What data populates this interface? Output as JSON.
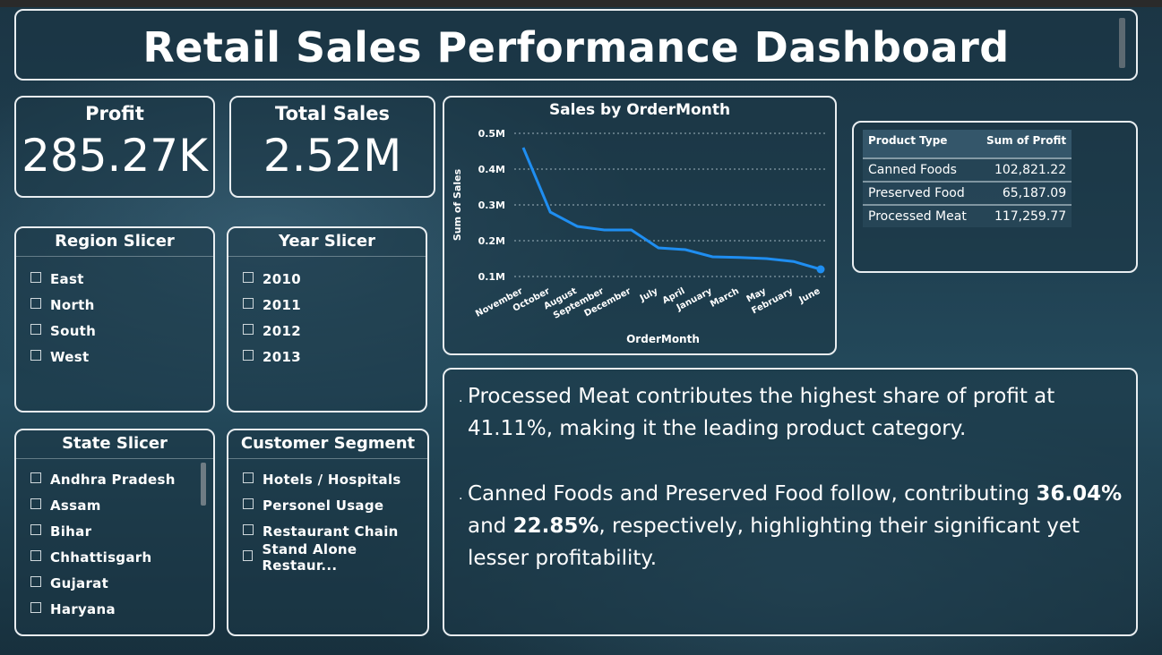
{
  "title": "Retail Sales Performance Dashboard",
  "kpis": {
    "profit": {
      "label": "Profit",
      "value": "285.27K"
    },
    "total_sales": {
      "label": "Total Sales",
      "value": "2.52M"
    }
  },
  "region_slicer": {
    "title": "Region Slicer",
    "items": [
      "East",
      "North",
      "South",
      "West"
    ]
  },
  "year_slicer": {
    "title": "Year Slicer",
    "items": [
      "2010",
      "2011",
      "2012",
      "2013"
    ]
  },
  "state_slicer": {
    "title": "State Slicer",
    "items": [
      "Andhra Pradesh",
      "Assam",
      "Bihar",
      "Chhattisgarh",
      "Gujarat",
      "Haryana"
    ]
  },
  "segment_slicer": {
    "title": "Customer Segment",
    "items": [
      "Hotels / Hospitals",
      "Personel Usage",
      "Restaurant Chain",
      "Stand Alone Restaur..."
    ]
  },
  "chart_data": {
    "type": "line",
    "title": "Sales by OrderMonth",
    "xlabel": "OrderMonth",
    "ylabel": "Sum of Sales",
    "categories": [
      "November",
      "October",
      "August",
      "September",
      "December",
      "July",
      "April",
      "January",
      "March",
      "May",
      "February",
      "June"
    ],
    "values": [
      0.46,
      0.28,
      0.24,
      0.23,
      0.23,
      0.18,
      0.175,
      0.155,
      0.153,
      0.15,
      0.142,
      0.12
    ],
    "ylim": [
      0.1,
      0.5
    ],
    "yticks": [
      "0.1M",
      "0.2M",
      "0.3M",
      "0.4M",
      "0.5M"
    ],
    "grid": true,
    "color": "#1f8ef1"
  },
  "profit_table": {
    "headers": [
      "Product Type",
      "Sum of Profit"
    ],
    "rows": [
      [
        "Canned Foods",
        "102,821.22"
      ],
      [
        "Preserved Food",
        "65,187.09"
      ],
      [
        "Processed Meat",
        "117,259.77"
      ]
    ]
  },
  "insights": {
    "p1": "Processed Meat contributes the highest share of profit at 41.11%, making it the leading product category.",
    "p2_a": "Canned Foods and Preserved Food follow, contributing ",
    "p2_b": "36.04%",
    "p2_c": " and ",
    "p2_d": "22.85%",
    "p2_e": ", respectively, highlighting their significant yet lesser profitability."
  }
}
